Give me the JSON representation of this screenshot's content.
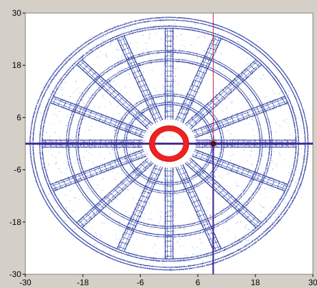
{
  "chart_data": {
    "type": "scatter",
    "xlim": [
      -30,
      30
    ],
    "ylim": [
      -30,
      30
    ],
    "x_ticks": [
      -30,
      -18,
      -6,
      6,
      18,
      30
    ],
    "y_ticks": [
      30,
      18,
      6,
      -6,
      -18,
      -30
    ],
    "x_tick_labels": [
      "-30",
      "-18",
      "-6",
      "6",
      "18",
      "30"
    ],
    "y_tick_labels": [
      "30",
      "18",
      "6",
      "-6",
      "-18",
      "-30"
    ],
    "grid": false,
    "legend": "none",
    "pattern": {
      "outer_radius": 29,
      "rim_inner_radius": 26.5,
      "ring_radii": [
        21,
        19,
        11,
        9
      ],
      "spoke_count": 16,
      "spoke_start_radius": 5.5,
      "spoke_width": 1.6,
      "hub_radius": 3.5,
      "hub_color": "#ee2222"
    },
    "crosshair": {
      "x": 9.2,
      "y": 0,
      "marker_color": "#880000"
    },
    "colors": {
      "contour": "#3c4ea8",
      "crosshair_horizontal": "#4a2a96",
      "crosshair_vertical": "#4a2a96",
      "vertical_thin": "#c0203a",
      "plot_bg": "#ffffff",
      "window_bg": "#d4d0c8"
    }
  }
}
